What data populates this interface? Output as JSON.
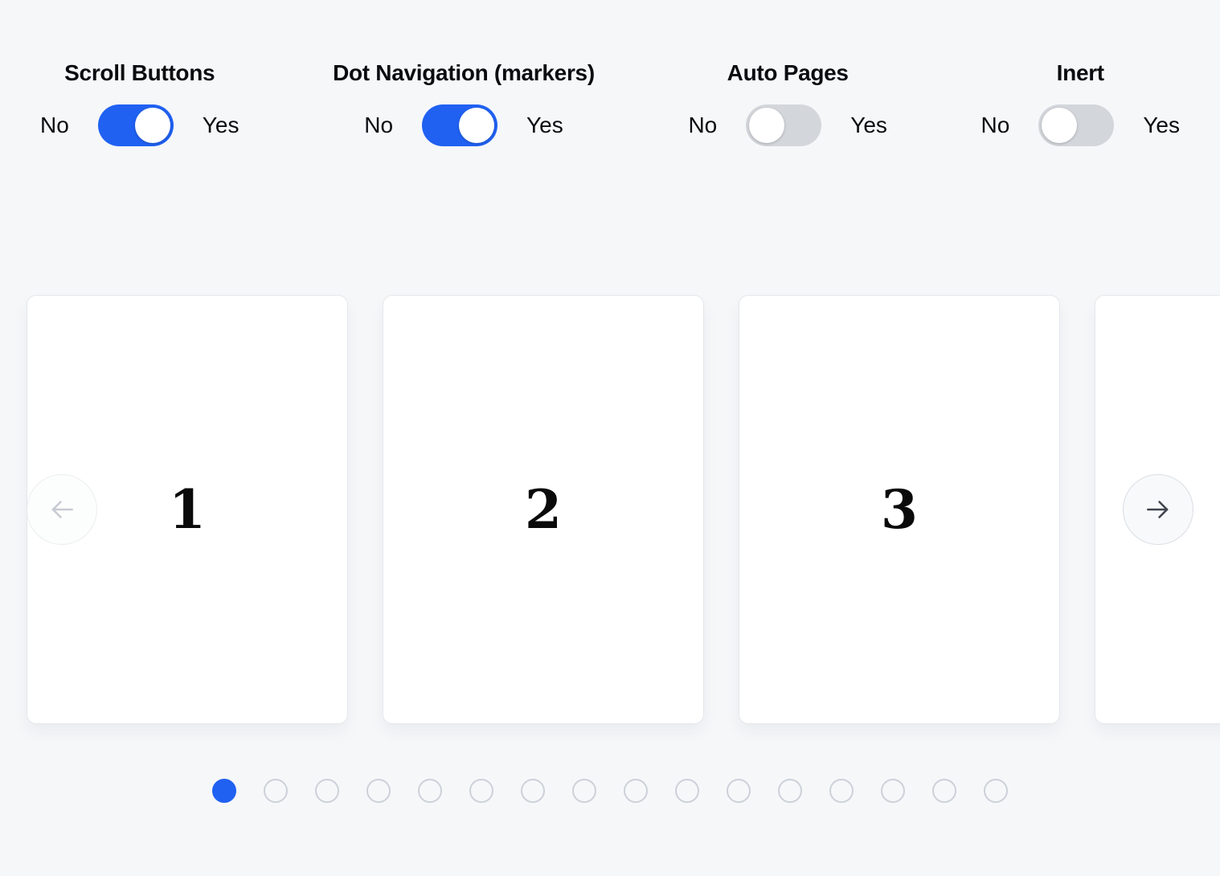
{
  "colors": {
    "accent": "#2061f2",
    "toggle_off_track": "#d3d6db",
    "background": "#f6f7f9",
    "card_background": "#ffffff",
    "card_border": "#e4e7ec",
    "dot_border": "#ccd1d9"
  },
  "controls": [
    {
      "title": "Scroll Buttons",
      "no_label": "No",
      "yes_label": "Yes",
      "state": "on"
    },
    {
      "title": "Dot Navigation (markers)",
      "no_label": "No",
      "yes_label": "Yes",
      "state": "on"
    },
    {
      "title": "Auto Pages",
      "no_label": "No",
      "yes_label": "Yes",
      "state": "off"
    },
    {
      "title": "Inert",
      "no_label": "No",
      "yes_label": "Yes",
      "state": "off"
    }
  ],
  "carousel": {
    "slides": [
      {
        "label": "1"
      },
      {
        "label": "2"
      },
      {
        "label": "3"
      },
      {
        "label": ""
      }
    ],
    "prev_button": {
      "icon": "arrow-left-icon",
      "state": "disabled"
    },
    "next_button": {
      "icon": "arrow-right-icon",
      "state": "enabled"
    },
    "dots": {
      "count": 16,
      "active_index": 0
    }
  }
}
